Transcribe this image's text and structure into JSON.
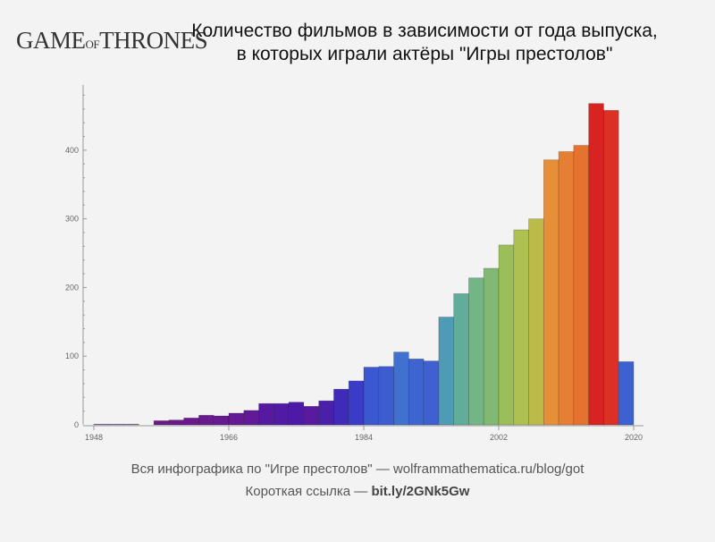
{
  "logo_text": "GAME OF THRONES",
  "chart_data": {
    "type": "bar",
    "title": "Количество фильмов в зависимости от года выпуска, в которых играли актёры \"Игры престолов\"",
    "title_line1": "Количество фильмов в зависимости от года выпуска,",
    "title_line2": "в которых играли актёры \"Игры престолов\"",
    "bin_width_years": 2,
    "bins_start": [
      1948,
      1950,
      1952,
      1954,
      1956,
      1958,
      1960,
      1962,
      1964,
      1966,
      1968,
      1970,
      1972,
      1974,
      1976,
      1978,
      1980,
      1982,
      1984,
      1986,
      1988,
      1990,
      1992,
      1994,
      1996,
      1998,
      2000,
      2002,
      2004,
      2006,
      2008,
      2010,
      2012,
      2014,
      2016,
      2018
    ],
    "values": [
      1,
      1,
      1,
      0,
      6,
      7,
      10,
      14,
      13,
      17,
      21,
      31,
      31,
      33,
      27,
      35,
      52,
      64,
      84,
      85,
      106,
      96,
      93,
      157,
      191,
      214,
      228,
      262,
      284,
      300,
      386,
      398,
      407,
      468,
      458,
      92
    ],
    "colors": [
      "#8a5a9a",
      "#8a5a9a",
      "#8a5a9a",
      "#7a2a8a",
      "#6e1a88",
      "#6c1a8a",
      "#6a1a8c",
      "#681a8e",
      "#661a90",
      "#641a92",
      "#601a96",
      "#551aa0",
      "#511aa4",
      "#4d1aa8",
      "#5a1aa0",
      "#4a20aa",
      "#402ab8",
      "#3a3cc8",
      "#3c58d0",
      "#3c5cd0",
      "#4070d0",
      "#3e64d0",
      "#3e60d0",
      "#4f9ab5",
      "#62ad9a",
      "#74b585",
      "#80b874",
      "#9bbd5a",
      "#aec050",
      "#bbbb4a",
      "#e68e38",
      "#e67e33",
      "#e5722f",
      "#d92222",
      "#dc3025",
      "#3d62d0"
    ],
    "xticks": [
      1948,
      1966,
      1984,
      2002,
      2020
    ],
    "yticks": [
      0,
      100,
      200,
      300,
      400
    ],
    "xlim": [
      1948,
      2020
    ],
    "ylim": [
      0,
      495
    ],
    "xlabel": "",
    "ylabel": "",
    "grid": false
  },
  "footer": {
    "line1": "Вся инфографика по \"Игре престолов\" — wolframmathematica.ru/blog/got",
    "line2_prefix": "Короткая ссылка — ",
    "line2_link": "bit.ly/2GNk5Gw"
  }
}
